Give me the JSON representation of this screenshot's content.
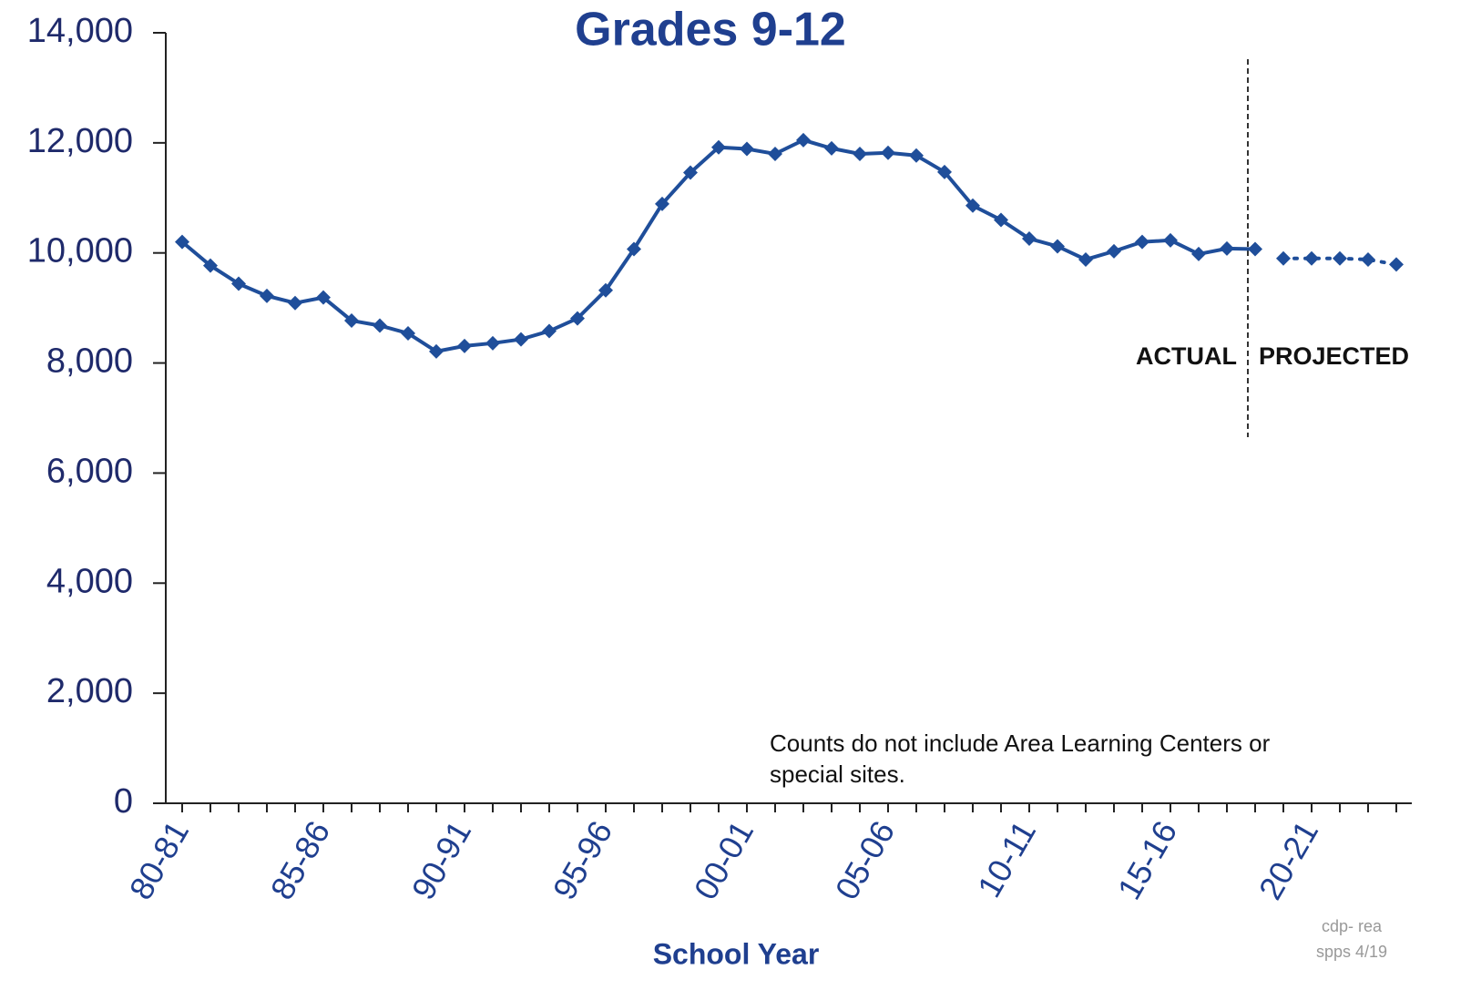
{
  "chart_data": {
    "type": "line",
    "title": "Grades 9-12",
    "x_label": "School Year",
    "categories": [
      "80-81",
      null,
      null,
      null,
      null,
      "85-86",
      null,
      null,
      null,
      null,
      "90-91",
      null,
      null,
      null,
      null,
      "95-96",
      null,
      null,
      null,
      null,
      "00-01",
      null,
      null,
      null,
      null,
      "05-06",
      null,
      null,
      null,
      null,
      "10-11",
      null,
      null,
      null,
      null,
      "15-16",
      null,
      null,
      null,
      null,
      "20-21",
      null,
      null,
      null
    ],
    "series": [
      {
        "name": "ACTUAL",
        "color": "#1f4e9a",
        "values": [
          10200,
          9770,
          9440,
          9220,
          9090,
          9190,
          8770,
          8680,
          8540,
          8210,
          8310,
          8360,
          8430,
          8580,
          8810,
          9320,
          10070,
          10890,
          11460,
          11920,
          11890,
          11800,
          12050,
          11900,
          11800,
          11820,
          11770,
          11470,
          10860,
          10600,
          10260,
          10120,
          9880,
          10030,
          10200,
          10230,
          9980,
          10080,
          10070,
          null,
          null,
          null,
          null,
          null
        ]
      },
      {
        "name": "PROJECTED",
        "color": "#1f4e9a",
        "values": [
          null,
          null,
          null,
          null,
          null,
          null,
          null,
          null,
          null,
          null,
          null,
          null,
          null,
          null,
          null,
          null,
          null,
          null,
          null,
          null,
          null,
          null,
          null,
          null,
          null,
          null,
          null,
          null,
          null,
          null,
          null,
          null,
          null,
          null,
          null,
          null,
          null,
          null,
          null,
          9900,
          9900,
          9900,
          9880,
          9790
        ]
      }
    ],
    "ylim": [
      0,
      14000
    ],
    "yticks": [
      0,
      {
        "value": 2000,
        "label": "2,000"
      },
      {
        "value": 4000,
        "label": "4,000"
      },
      {
        "value": 6000,
        "label": "6,000"
      },
      {
        "value": 8000,
        "label": "8,000"
      },
      {
        "value": 10000,
        "label": "10,000"
      },
      {
        "value": 12000,
        "label": "12,000"
      },
      {
        "value": 14000,
        "label": "14,000"
      }
    ],
    "note": [
      "Counts do not include Area Learning Centers or",
      "special sites."
    ],
    "credit": [
      "cdp- rea",
      "spps 4/19"
    ]
  }
}
